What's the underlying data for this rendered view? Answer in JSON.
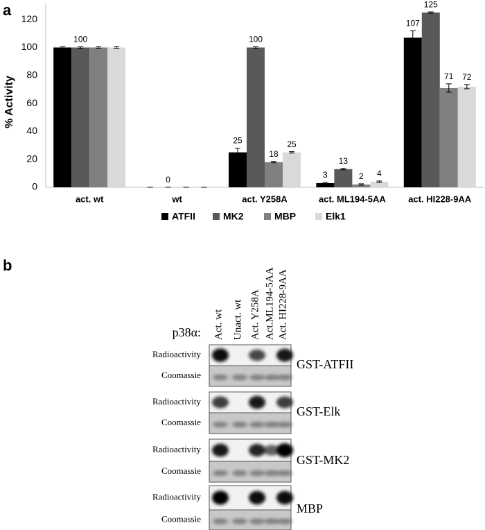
{
  "panel_a_label": "a",
  "chart_data": {
    "type": "bar",
    "ylabel": "% Activity",
    "categories": [
      "act. wt",
      "wt",
      "act. Y258A",
      "act. ML194-5AA",
      "act. HI228-9AA"
    ],
    "series": [
      {
        "name": "ATFII",
        "color": "#000000",
        "values": [
          100,
          0,
          25,
          3,
          107
        ],
        "errors": [
          0.5,
          0,
          3,
          0.5,
          5
        ],
        "value_labels": [
          null,
          null,
          "25",
          "3",
          "107"
        ]
      },
      {
        "name": "MK2",
        "color": "#595959",
        "values": [
          100,
          0,
          100,
          13,
          125
        ],
        "errors": [
          0.5,
          0,
          0.5,
          0.5,
          0.5
        ],
        "value_labels": [
          "100",
          "0",
          "100",
          "13",
          "125"
        ]
      },
      {
        "name": "MBP",
        "color": "#808080",
        "values": [
          100,
          0,
          18,
          2,
          71
        ],
        "errors": [
          0.5,
          0,
          0.5,
          0.5,
          3
        ],
        "value_labels": [
          null,
          null,
          "18",
          "2",
          "71"
        ]
      },
      {
        "name": "Elk1",
        "color": "#d9d9d9",
        "values": [
          100,
          0,
          25,
          4,
          72
        ],
        "errors": [
          0.5,
          0,
          0.5,
          0.5,
          1.5
        ],
        "value_labels": [
          null,
          null,
          "25",
          "4",
          "72"
        ]
      }
    ],
    "ylim": [
      0,
      130
    ],
    "yticks": [
      0,
      20,
      40,
      60,
      80,
      100,
      120
    ],
    "grid": false,
    "legend": "bottom"
  },
  "panel_b_label": "b",
  "blot": {
    "lane_prefix": "p38α:",
    "lanes": [
      "Act. wt",
      "Unact. wt",
      "Act. Y258A",
      "Act.ML194-5AA",
      "Act. HI228-9AA"
    ],
    "blocks": [
      {
        "name": "GST-ATFII",
        "rows": [
          "Radioactivity",
          "Coomassie"
        ]
      },
      {
        "name": "GST-Elk",
        "rows": [
          "Radioactivity",
          "Coomassie"
        ]
      },
      {
        "name": "GST-MK2",
        "rows": [
          "Radioactivity",
          "Coomassie"
        ]
      },
      {
        "name": "MBP",
        "rows": [
          "Radioactivity",
          "Coomassie"
        ]
      }
    ]
  }
}
